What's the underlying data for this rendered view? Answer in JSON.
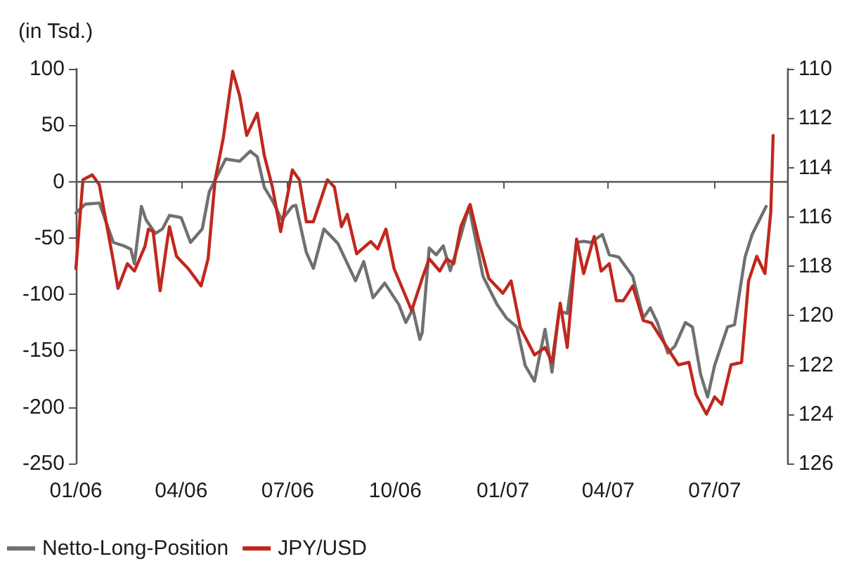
{
  "chart_data": {
    "type": "line",
    "ylabel": "(in Tsd.)",
    "xlim": [
      "2006-01-01",
      "2007-09-01"
    ],
    "xticks": [
      {
        "value": "2006-01-01",
        "label": "01/06"
      },
      {
        "value": "2006-04-01",
        "label": "04/06"
      },
      {
        "value": "2006-07-01",
        "label": "07/06"
      },
      {
        "value": "2006-10-01",
        "label": "10/06"
      },
      {
        "value": "2007-01-01",
        "label": "01/07"
      },
      {
        "value": "2007-04-01",
        "label": "04/07"
      },
      {
        "value": "2007-07-01",
        "label": "07/07"
      }
    ],
    "ylim": [
      -250,
      100
    ],
    "yticks": [
      -250,
      -200,
      -150,
      -100,
      -50,
      0,
      50,
      100
    ],
    "y2lim": [
      126,
      110
    ],
    "y2ticks": [
      126,
      124,
      122,
      120,
      118,
      116,
      114,
      112,
      110
    ],
    "ref_lines": [
      {
        "axis": "y",
        "value": 0,
        "color": "#555555",
        "line_style": "solid"
      }
    ],
    "grid": false,
    "legend": "bottom left",
    "marker": "none",
    "line_style": "solid",
    "series": [
      {
        "name": "Netto-Long-Position",
        "color": "#707070",
        "x": [
          "2006-01-01",
          "2006-01-09",
          "2006-01-21",
          "2006-02-02",
          "2006-02-11",
          "2006-02-17",
          "2006-02-20",
          "2006-02-26",
          "2006-03-02",
          "2006-03-10",
          "2006-03-16",
          "2006-03-22",
          "2006-04-01",
          "2006-04-09",
          "2006-04-19",
          "2006-04-25",
          "2006-05-09",
          "2006-05-21",
          "2006-05-30",
          "2006-06-05",
          "2006-06-11",
          "2006-06-18",
          "2006-06-26",
          "2006-07-05",
          "2006-07-08",
          "2006-07-17",
          "2006-07-23",
          "2006-08-01",
          "2006-08-13",
          "2006-08-28",
          "2006-09-04",
          "2006-09-12",
          "2006-09-22",
          "2006-10-04",
          "2006-10-10",
          "2006-10-16",
          "2006-10-22",
          "2006-10-24",
          "2006-10-30",
          "2006-11-05",
          "2006-11-11",
          "2006-11-17",
          "2006-11-23",
          "2006-12-03",
          "2006-12-15",
          "2006-12-27",
          "2007-01-04",
          "2007-01-13",
          "2007-01-20",
          "2007-01-28",
          "2007-02-06",
          "2007-02-12",
          "2007-02-18",
          "2007-02-25",
          "2007-03-05",
          "2007-03-11",
          "2007-03-17",
          "2007-03-27",
          "2007-04-02",
          "2007-04-10",
          "2007-04-22",
          "2007-05-01",
          "2007-05-07",
          "2007-05-13",
          "2007-05-22",
          "2007-05-28",
          "2007-06-06",
          "2007-06-12",
          "2007-06-19",
          "2007-06-25",
          "2007-07-01",
          "2007-07-12",
          "2007-07-18",
          "2007-07-27",
          "2007-08-02",
          "2007-08-14"
        ],
        "values": [
          -28,
          -20,
          -19,
          -54,
          -57,
          -60,
          -73,
          -22,
          -34,
          -46,
          -42,
          -30,
          -32,
          -54,
          -42,
          -9,
          20,
          18,
          27,
          22,
          -5,
          -17,
          -34,
          -22,
          -21,
          -63,
          -77,
          -42,
          -55,
          -88,
          -71,
          -103,
          -90,
          -109,
          -125,
          -113,
          -140,
          -134,
          -59,
          -65,
          -57,
          -79,
          -59,
          -22,
          -84,
          -109,
          -121,
          -129,
          -163,
          -177,
          -131,
          -169,
          -115,
          -117,
          -54,
          -53,
          -54,
          -47,
          -65,
          -67,
          -84,
          -121,
          -112,
          -125,
          -152,
          -146,
          -125,
          -129,
          -171,
          -191,
          -163,
          -129,
          -127,
          -67,
          -47,
          -22
        ]
      },
      {
        "name": "JPY/USD",
        "color": "#c0281e",
        "axis": "y2",
        "x": [
          "2006-01-01",
          "2006-01-07",
          "2006-01-15",
          "2006-01-21",
          "2006-02-02",
          "2006-02-06",
          "2006-02-14",
          "2006-02-20",
          "2006-03-01",
          "2006-03-04",
          "2006-03-08",
          "2006-03-14",
          "2006-03-20",
          "2006-03-22",
          "2006-03-28",
          "2006-04-07",
          "2006-04-18",
          "2006-04-24",
          "2006-04-30",
          "2006-05-07",
          "2006-05-15",
          "2006-05-21",
          "2006-05-27",
          "2006-06-05",
          "2006-06-11",
          "2006-06-18",
          "2006-06-25",
          "2006-07-05",
          "2006-07-11",
          "2006-07-17",
          "2006-07-23",
          "2006-08-04",
          "2006-08-10",
          "2006-08-16",
          "2006-08-21",
          "2006-08-29",
          "2006-09-10",
          "2006-09-16",
          "2006-09-23",
          "2006-09-30",
          "2006-10-15",
          "2006-10-24",
          "2006-10-30",
          "2006-11-08",
          "2006-11-14",
          "2006-11-20",
          "2006-11-26",
          "2006-12-04",
          "2006-12-11",
          "2006-12-20",
          "2007-01-01",
          "2007-01-08",
          "2007-01-16",
          "2007-01-28",
          "2007-02-06",
          "2007-02-12",
          "2007-02-19",
          "2007-02-25",
          "2007-03-05",
          "2007-03-11",
          "2007-03-20",
          "2007-03-26",
          "2007-04-02",
          "2007-04-08",
          "2007-04-14",
          "2007-04-22",
          "2007-05-01",
          "2007-05-08",
          "2007-05-16",
          "2007-05-31",
          "2007-06-09",
          "2007-06-15",
          "2007-06-24",
          "2007-07-01",
          "2007-07-07",
          "2007-07-15",
          "2007-07-24",
          "2007-07-30",
          "2007-08-06",
          "2007-08-13",
          "2007-08-18",
          "2007-08-20"
        ],
        "values": [
          118.1,
          114.5,
          114.3,
          114.7,
          117.8,
          118.9,
          117.9,
          118.2,
          117.2,
          116.5,
          116.6,
          119.0,
          117.0,
          116.4,
          117.6,
          118.1,
          118.8,
          117.7,
          114.5,
          112.8,
          110.1,
          111.1,
          112.7,
          111.8,
          113.5,
          114.8,
          116.6,
          114.1,
          114.5,
          116.2,
          116.2,
          114.5,
          114.8,
          116.4,
          115.9,
          117.5,
          117.0,
          117.3,
          116.5,
          118.1,
          119.8,
          118.5,
          117.7,
          118.2,
          117.7,
          117.9,
          116.4,
          115.5,
          116.9,
          118.5,
          119.1,
          118.6,
          120.5,
          121.6,
          121.3,
          121.9,
          119.5,
          121.3,
          116.9,
          118.3,
          116.8,
          118.2,
          117.9,
          119.4,
          119.4,
          118.8,
          120.2,
          120.3,
          120.9,
          122.0,
          121.9,
          123.2,
          124.0,
          123.3,
          123.6,
          122.0,
          121.9,
          118.6,
          117.6,
          118.3,
          115.8,
          112.7
        ]
      }
    ]
  }
}
